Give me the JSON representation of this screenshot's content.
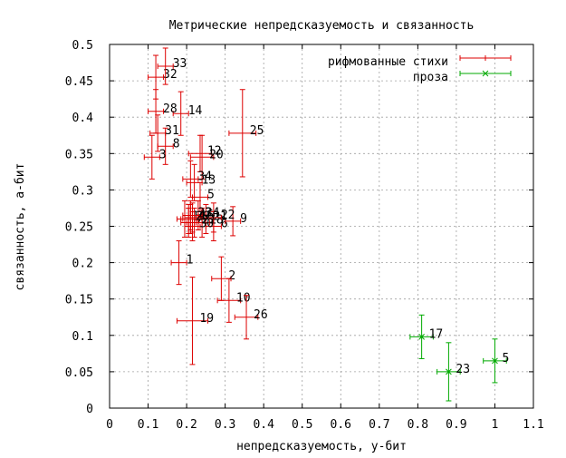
{
  "chart_data": {
    "type": "scatter",
    "title": "Метрические непредсказуемость и связанность",
    "xlabel": "непредсказуемость, у-бит",
    "ylabel": "связанность, а-бит",
    "xlim": [
      0,
      1.1
    ],
    "ylim": [
      0,
      0.5
    ],
    "xticks": [
      "0",
      "0.1",
      "0.2",
      "0.3",
      "0.4",
      "0.5",
      "0.6",
      "0.7",
      "0.8",
      "0.9",
      "1",
      "1.1"
    ],
    "yticks": [
      "0",
      "0.05",
      "0.1",
      "0.15",
      "0.2",
      "0.25",
      "0.3",
      "0.35",
      "0.4",
      "0.45",
      "0.5"
    ],
    "grid": true,
    "legend_position": "top-right",
    "series": [
      {
        "name": "рифмованные стихи",
        "color": "#dd0000",
        "marker": "plus",
        "points": [
          {
            "label": "1",
            "x": 0.18,
            "y": 0.2,
            "xerr": 0.02,
            "yerr": 0.03
          },
          {
            "label": "2",
            "x": 0.29,
            "y": 0.178,
            "xerr": 0.025,
            "yerr": 0.03
          },
          {
            "label": "4",
            "x": 0.21,
            "y": 0.26,
            "xerr": 0.02,
            "yerr": 0.02
          },
          {
            "label": "5",
            "x": 0.235,
            "y": 0.29,
            "xerr": 0.02,
            "yerr": 0.02
          },
          {
            "label": "6",
            "x": 0.27,
            "y": 0.25,
            "xerr": 0.02,
            "yerr": 0.02
          },
          {
            "label": "7",
            "x": 0.205,
            "y": 0.255,
            "xerr": 0.02,
            "yerr": 0.02
          },
          {
            "label": "8",
            "x": 0.145,
            "y": 0.36,
            "xerr": 0.02,
            "yerr": 0.025
          },
          {
            "label": "9",
            "x": 0.32,
            "y": 0.257,
            "xerr": 0.02,
            "yerr": 0.02
          },
          {
            "label": "10",
            "x": 0.31,
            "y": 0.148,
            "xerr": 0.03,
            "yerr": 0.03
          },
          {
            "label": "11",
            "x": 0.195,
            "y": 0.26,
            "xerr": 0.02,
            "yerr": 0.025
          },
          {
            "label": "12",
            "x": 0.235,
            "y": 0.35,
            "xerr": 0.03,
            "yerr": 0.025
          },
          {
            "label": "13",
            "x": 0.22,
            "y": 0.31,
            "xerr": 0.02,
            "yerr": 0.025
          },
          {
            "label": "14",
            "x": 0.185,
            "y": 0.405,
            "xerr": 0.02,
            "yerr": 0.03
          },
          {
            "label": "16",
            "x": 0.215,
            "y": 0.262,
            "xerr": 0.02,
            "yerr": 0.02
          },
          {
            "label": "18",
            "x": 0.24,
            "y": 0.255,
            "xerr": 0.02,
            "yerr": 0.02
          },
          {
            "label": "19",
            "x": 0.215,
            "y": 0.12,
            "xerr": 0.04,
            "yerr": 0.06
          },
          {
            "label": "20",
            "x": 0.24,
            "y": 0.345,
            "xerr": 0.03,
            "yerr": 0.03
          },
          {
            "label": "21",
            "x": 0.25,
            "y": 0.26,
            "xerr": 0.02,
            "yerr": 0.02
          },
          {
            "label": "22",
            "x": 0.27,
            "y": 0.262,
            "xerr": 0.02,
            "yerr": 0.02
          },
          {
            "label": "23",
            "x": 0.21,
            "y": 0.265,
            "xerr": 0.02,
            "yerr": 0.02
          },
          {
            "label": "24",
            "x": 0.23,
            "y": 0.265,
            "xerr": 0.02,
            "yerr": 0.02
          },
          {
            "label": "25",
            "x": 0.345,
            "y": 0.378,
            "xerr": 0.035,
            "yerr": 0.06
          },
          {
            "label": "26",
            "x": 0.355,
            "y": 0.125,
            "xerr": 0.03,
            "yerr": 0.03
          },
          {
            "label": "27",
            "x": 0.22,
            "y": 0.255,
            "xerr": 0.02,
            "yerr": 0.02
          },
          {
            "label": "28",
            "x": 0.12,
            "y": 0.408,
            "xerr": 0.02,
            "yerr": 0.03
          },
          {
            "label": "29",
            "x": 0.205,
            "y": 0.26,
            "xerr": 0.02,
            "yerr": 0.02
          },
          {
            "label": "30",
            "x": 0.215,
            "y": 0.25,
            "xerr": 0.02,
            "yerr": 0.02
          },
          {
            "label": "31",
            "x": 0.125,
            "y": 0.378,
            "xerr": 0.02,
            "yerr": 0.025
          },
          {
            "label": "32",
            "x": 0.12,
            "y": 0.455,
            "xerr": 0.02,
            "yerr": 0.03
          },
          {
            "label": "33",
            "x": 0.145,
            "y": 0.47,
            "xerr": 0.02,
            "yerr": 0.025
          },
          {
            "label": "34",
            "x": 0.21,
            "y": 0.315,
            "xerr": 0.02,
            "yerr": 0.025
          },
          {
            "label": "3",
            "x": 0.11,
            "y": 0.345,
            "xerr": 0.02,
            "yerr": 0.03
          }
        ]
      },
      {
        "name": "проза",
        "color": "#00aa00",
        "marker": "cross",
        "points": [
          {
            "label": "17",
            "x": 0.81,
            "y": 0.098,
            "xerr": 0.03,
            "yerr": 0.03
          },
          {
            "label": "23",
            "x": 0.88,
            "y": 0.05,
            "xerr": 0.03,
            "yerr": 0.04
          },
          {
            "label": "5",
            "x": 1.0,
            "y": 0.065,
            "xerr": 0.03,
            "yerr": 0.03
          }
        ]
      }
    ]
  }
}
